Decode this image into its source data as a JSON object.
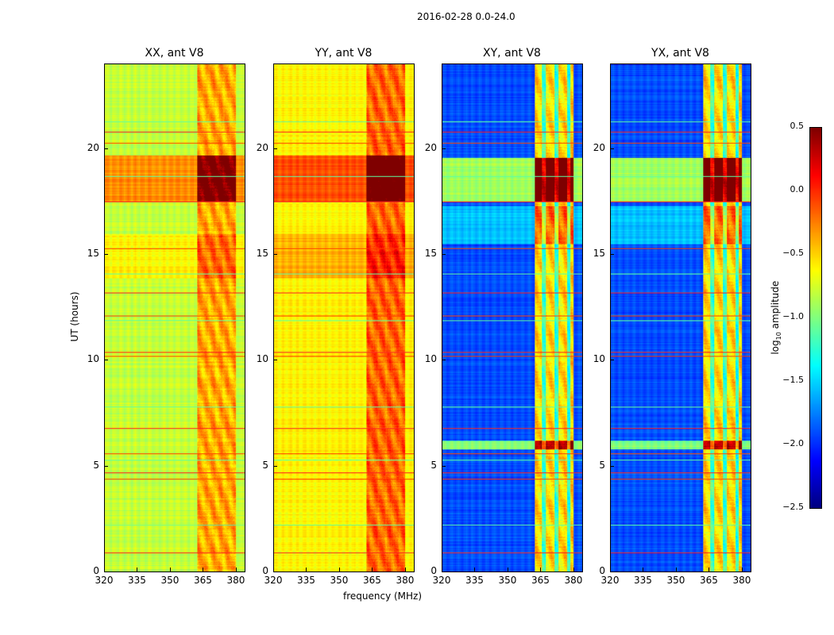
{
  "chart_data": {
    "type": "heatmap",
    "title": "2016-02-28 0.0-24.0",
    "xlabel": "frequency (MHz)",
    "ylabel": "UT (hours)",
    "xlim": [
      320,
      384
    ],
    "ylim": [
      0,
      24
    ],
    "xticks": [
      "320",
      "335",
      "350",
      "365",
      "380"
    ],
    "xtick_values": [
      320,
      335,
      350,
      365,
      380
    ],
    "yticks": [
      "0",
      "5",
      "10",
      "15",
      "20"
    ],
    "ytick_values": [
      0,
      5,
      10,
      15,
      20
    ],
    "panels": [
      {
        "title": "XX, ant V8",
        "base_level": -0.8,
        "rfi_band_mhz": [
          362,
          380
        ],
        "bright_band_hours": [
          17.5,
          19.7
        ]
      },
      {
        "title": "YY, ant V8",
        "base_level": -0.6,
        "rfi_band_mhz": [
          362,
          380
        ],
        "bright_band_hours": [
          17.5,
          19.7
        ]
      },
      {
        "title": "XY, ant V8",
        "base_level": -1.9,
        "rfi_band_mhz": [
          362,
          380
        ],
        "bright_band_hours": [
          17.5,
          19.6
        ]
      },
      {
        "title": "YX, ant V8",
        "base_level": -1.9,
        "rfi_band_mhz": [
          362,
          380
        ],
        "bright_band_hours": [
          17.5,
          19.6
        ]
      }
    ],
    "colorbar": {
      "label": "log10 amplitude",
      "colormap": "jet",
      "vmin": -2.5,
      "vmax": 0.5,
      "ticks": [
        "0.5",
        "0.0",
        "−0.5",
        "−1.0",
        "−1.5",
        "−2.0",
        "−2.5"
      ],
      "tick_values": [
        0.5,
        0.0,
        -0.5,
        -1.0,
        -1.5,
        -2.0,
        -2.5
      ]
    },
    "flagged_rows_hours": [
      0.9,
      2.2,
      4.4,
      4.7,
      5.3,
      5.6,
      6.8,
      7.8,
      10.2,
      10.4,
      11.9,
      12.1,
      13.2,
      14.1,
      15.3,
      17.5,
      18.7,
      20.3,
      20.8,
      21.3
    ]
  }
}
